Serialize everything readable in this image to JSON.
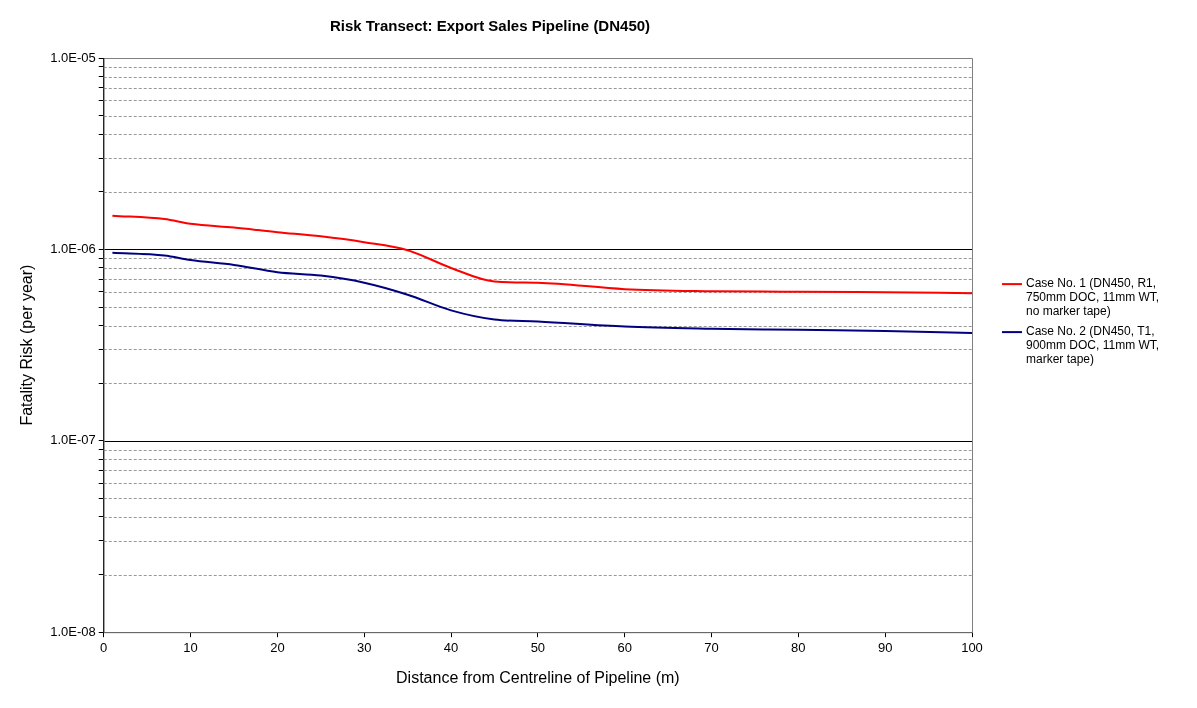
{
  "chart_data": {
    "type": "line",
    "title": "Risk Transect: Export Sales Pipeline (DN450)",
    "xlabel": "Distance from Centreline of Pipeline (m)",
    "ylabel": "Fatality Risk (per year)",
    "xlim": [
      0,
      100
    ],
    "xticks": [
      0,
      10,
      20,
      30,
      40,
      50,
      60,
      70,
      80,
      90,
      100
    ],
    "ylim": [
      1e-08,
      1e-05
    ],
    "yticks": [
      {
        "value": 1e-08,
        "label": "1.0E-08"
      },
      {
        "value": 2e-08,
        "label": null
      },
      {
        "value": 3e-08,
        "label": null
      },
      {
        "value": 4e-08,
        "label": null
      },
      {
        "value": 5e-08,
        "label": null
      },
      {
        "value": 6e-08,
        "label": null
      },
      {
        "value": 7e-08,
        "label": null
      },
      {
        "value": 8e-08,
        "label": null
      },
      {
        "value": 9e-08,
        "label": null
      },
      {
        "value": 1e-07,
        "label": "1.0E-07"
      },
      {
        "value": 2e-07,
        "label": null
      },
      {
        "value": 3e-07,
        "label": null
      },
      {
        "value": 4e-07,
        "label": null
      },
      {
        "value": 5e-07,
        "label": null
      },
      {
        "value": 6e-07,
        "label": null
      },
      {
        "value": 7e-07,
        "label": null
      },
      {
        "value": 8e-07,
        "label": null
      },
      {
        "value": 9e-07,
        "label": null
      },
      {
        "value": 1e-06,
        "label": "1.0E-06"
      },
      {
        "value": 2e-06,
        "label": null
      },
      {
        "value": 3e-06,
        "label": null
      },
      {
        "value": 4e-06,
        "label": null
      },
      {
        "value": 5e-06,
        "label": null
      },
      {
        "value": 6e-06,
        "label": null
      },
      {
        "value": 7e-06,
        "label": null
      },
      {
        "value": 8e-06,
        "label": null
      },
      {
        "value": 9e-06,
        "label": null
      },
      {
        "value": 1e-05,
        "label": "1.0E-05"
      }
    ],
    "log": "y",
    "grid": "y",
    "legend": "right",
    "marker": "none",
    "line_style": "solid",
    "x": [
      1,
      7,
      10,
      15,
      20,
      25,
      30,
      35,
      40,
      45,
      50,
      60,
      70,
      80,
      90,
      100
    ],
    "series": [
      {
        "name": "Case No. 1 (DN450, R1, 750mm DOC, 11mm WT, no marker tape)",
        "color": "#ff0000",
        "values": [
          1.5e-06,
          1.44e-06,
          1.36e-06,
          1.3e-06,
          1.23e-06,
          1.17e-06,
          1.09e-06,
          9.9e-07,
          8e-07,
          6.8e-07,
          6.7e-07,
          6.2e-07,
          6.05e-07,
          6e-07,
          5.98e-07,
          5.9e-07
        ]
      },
      {
        "name": "Case No. 2 (DN450, T1, 900mm DOC, 11mm WT, marker tape)",
        "color": "#000080",
        "values": [
          9.6e-07,
          9.3e-07,
          8.8e-07,
          8.3e-07,
          7.6e-07,
          7.3e-07,
          6.7e-07,
          5.8e-07,
          4.8e-07,
          4.3e-07,
          4.2e-07,
          3.95e-07,
          3.85e-07,
          3.8e-07,
          3.75e-07,
          3.66e-07
        ]
      }
    ]
  }
}
